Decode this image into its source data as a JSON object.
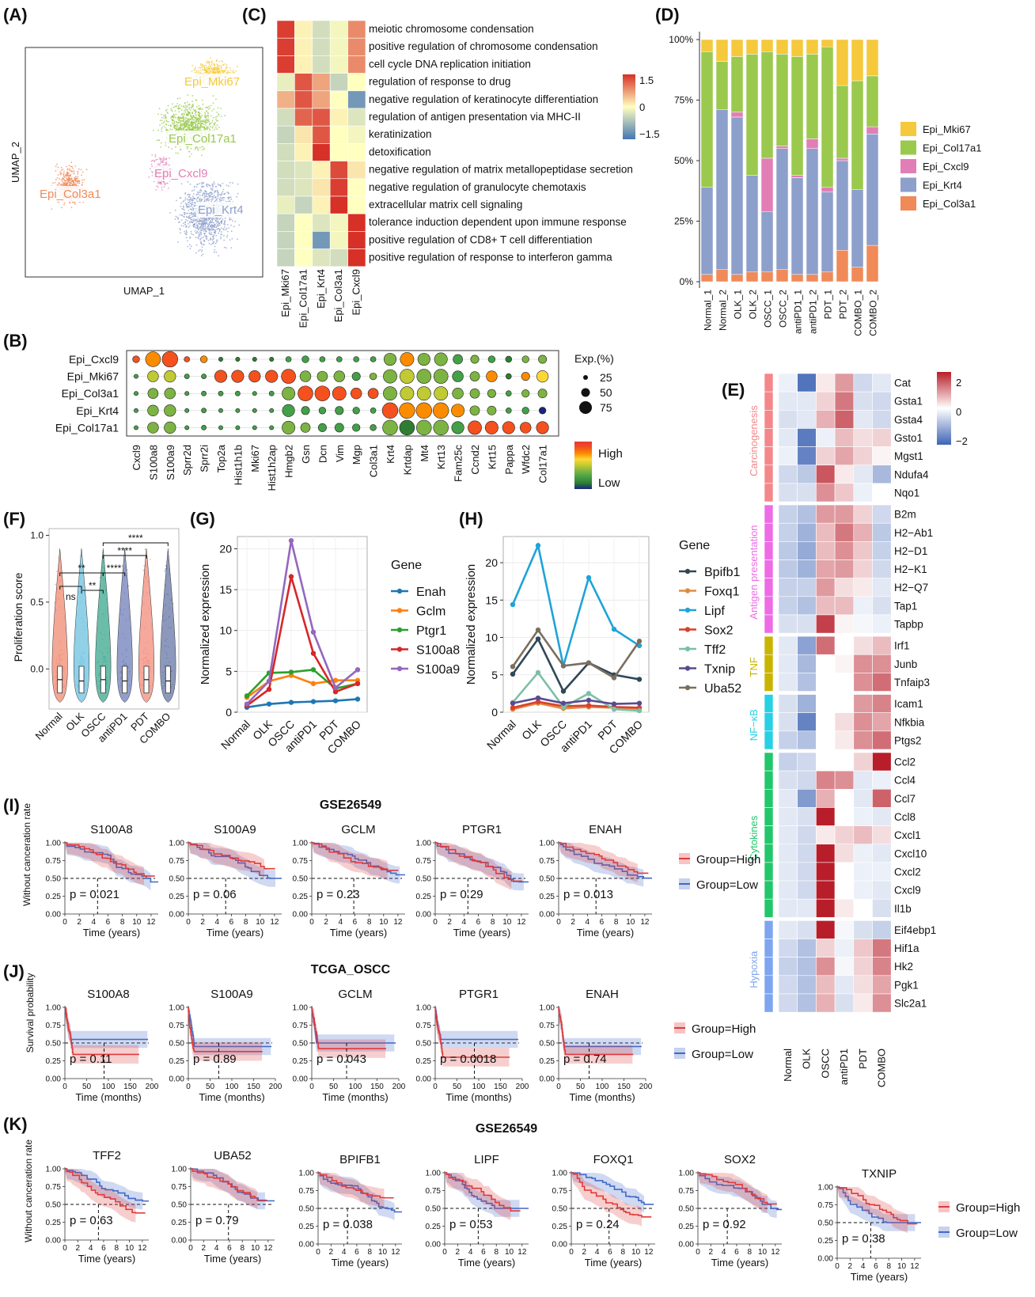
{
  "panel_labels": [
    "(A)",
    "(B)",
    "(C)",
    "(D)",
    "(E)",
    "(F)",
    "(G)",
    "(H)",
    "(I)",
    "(J)",
    "(K)"
  ],
  "colors": {
    "Epi_Mki67": "#F5C93B",
    "Epi_Col17a1": "#9AC94E",
    "Epi_Cxcl9": "#E27EB6",
    "Epi_Krt4": "#8D9FCB",
    "Epi_Col3a1": "#F08A58",
    "heat_low": "#4575B4",
    "heat_mid": "#FFFFBF",
    "heat_high": "#D73027",
    "high_group": "#E03B3B",
    "low_group": "#4169C8"
  },
  "chart_data": [
    {
      "id": "A",
      "type": "scatter",
      "xlabel": "UMAP_1",
      "ylabel": "UMAP_2",
      "clusters": [
        "Epi_Mki67",
        "Epi_Col17a1",
        "Epi_Cxcl9",
        "Epi_Col3a1",
        "Epi_Krt4"
      ]
    },
    {
      "id": "B",
      "type": "scatter",
      "rows": [
        "Epi_Cxcl9",
        "Epi_Mki67",
        "Epi_Col3a1",
        "Epi_Krt4",
        "Epi_Col17a1"
      ],
      "genes": [
        "Cxcl9",
        "S100a8",
        "S100a9",
        "Sprr2d",
        "Sprr2i",
        "Top2a",
        "Hist1h1b",
        "Mki67",
        "Hist1h2ap",
        "Hmgb2",
        "Gsn",
        "Dcn",
        "Vim",
        "Mgp",
        "Col3a1",
        "Krt4",
        "Krtdap",
        "Mt4",
        "Krt13",
        "Fam25c",
        "Ccnd2",
        "Krt15",
        "Pappa",
        "Wfdc2",
        "Col17a1"
      ],
      "size_legend_title": "Exp.(%)",
      "size_legend": [
        "25",
        "50",
        "75"
      ],
      "color_legend": [
        "High",
        "Low"
      ]
    },
    {
      "id": "C",
      "type": "heatmap",
      "columns": [
        "Epi_Mki67",
        "Epi_Col17a1",
        "Epi_Krt4",
        "Epi_Col3a1",
        "Epi_Cxcl9"
      ],
      "terms": [
        "meiotic chromosome condensation",
        "positive regulation of chromosome condensation",
        "cell cycle DNA replication initiation",
        "regulation of response to drug",
        "negative regulation of keratinocyte differentiation",
        "regulation of antigen presentation via MHC-II",
        "keratinization",
        "detoxification",
        "negative regulation of matrix metallopeptidase secretion",
        "negative regulation of granulocyte chemotaxis",
        "extracellular matrix cell signaling",
        "tolerance induction dependent upon immune response",
        "positive regulation of CD8+ T cell differentiation",
        "positive regulation of response to interferon gamma"
      ],
      "values": [
        [
          1.5,
          0.1,
          -0.4,
          -0.1,
          0.9
        ],
        [
          1.5,
          0.1,
          -0.4,
          -0.1,
          0.9
        ],
        [
          1.5,
          0.1,
          -0.4,
          -0.1,
          0.9
        ],
        [
          -0.2,
          1.3,
          0.7,
          -0.5,
          0.0
        ],
        [
          0.6,
          1.3,
          0.7,
          0.0,
          -1.2
        ],
        [
          -0.4,
          1.2,
          1.3,
          0.1,
          -0.3
        ],
        [
          -0.5,
          0.2,
          1.3,
          0.0,
          -0.1
        ],
        [
          -0.4,
          0.1,
          1.6,
          0.0,
          0.0
        ],
        [
          -0.4,
          -0.3,
          0.1,
          1.4,
          0.2
        ],
        [
          -0.4,
          -0.3,
          0.2,
          1.5,
          0.0
        ],
        [
          -0.2,
          -0.5,
          0.1,
          1.6,
          0.0
        ],
        [
          -0.5,
          0.0,
          -0.3,
          -0.1,
          1.6
        ],
        [
          -0.5,
          0.0,
          -1.2,
          -0.1,
          1.6
        ],
        [
          -0.5,
          0.0,
          -0.3,
          -0.4,
          1.6
        ]
      ],
      "legend_ticks": [
        "1.5",
        "0",
        "−1.5"
      ]
    },
    {
      "id": "D",
      "type": "bar",
      "categories": [
        "Normal_1",
        "Normal_2",
        "OLK_1",
        "OLK_2",
        "OSCC_1",
        "OSCC_2",
        "antiPD1_1",
        "antiPD1_2",
        "PDT_1",
        "PDT_2",
        "COMBO_1",
        "COMBO_2"
      ],
      "series": [
        {
          "name": "Epi_Col3a1",
          "values": [
            3,
            5,
            3,
            4,
            4,
            5,
            3,
            3,
            4,
            13,
            6,
            15
          ]
        },
        {
          "name": "Epi_Krt4",
          "values": [
            36,
            66,
            65,
            40,
            25,
            50,
            40,
            52,
            33,
            37,
            32,
            46
          ]
        },
        {
          "name": "Epi_Cxcl9",
          "values": [
            0,
            0,
            2,
            0,
            22,
            1,
            1,
            4,
            2,
            1,
            0,
            3
          ]
        },
        {
          "name": "Epi_Col17a1",
          "values": [
            56,
            20,
            23,
            50,
            44,
            38,
            49,
            35,
            58,
            30,
            45,
            21
          ]
        },
        {
          "name": "Epi_Mki67",
          "values": [
            5,
            9,
            7,
            6,
            5,
            6,
            7,
            6,
            3,
            19,
            17,
            15
          ]
        }
      ],
      "legend_order": [
        "Epi_Mki67",
        "Epi_Col17a1",
        "Epi_Cxcl9",
        "Epi_Krt4",
        "Epi_Col3a1"
      ],
      "yticks": [
        "0%",
        "25%",
        "50%",
        "75%",
        "100%"
      ]
    },
    {
      "id": "E",
      "type": "heatmap",
      "columns": [
        "Normal",
        "OLK",
        "OSCC",
        "antiPD1",
        "PDT",
        "COMBO"
      ],
      "groups": [
        {
          "name": "Carcinogenesis",
          "color": "#F4878A",
          "genes": [
            "Cat",
            "Gsta1",
            "Gsta4",
            "Gsto1",
            "Mgst1",
            "Ndufa4",
            "Nqo1"
          ]
        },
        {
          "name": "Antigen presentation",
          "color": "#EE6BE6",
          "genes": [
            "B2m",
            "H2−Ab1",
            "H2−D1",
            "H2−K1",
            "H2−Q7",
            "Tap1",
            "Tapbp"
          ]
        },
        {
          "name": "TNF",
          "color": "#C9B400",
          "genes": [
            "Irf1",
            "Junb",
            "Tnfaip3"
          ]
        },
        {
          "name": "NF−κB",
          "color": "#27D1E3",
          "genes": [
            "Icam1",
            "Nfkbia",
            "Ptgs2"
          ]
        },
        {
          "name": "Cytokines",
          "color": "#21C76A",
          "genes": [
            "Ccl2",
            "Ccl4",
            "Ccl7",
            "Ccl8",
            "Cxcl1",
            "Cxcl10",
            "Cxcl2",
            "Cxcl9",
            "Il1b"
          ]
        },
        {
          "name": "Hypoxia",
          "color": "#7EA5F0",
          "genes": [
            "Eif4ebp1",
            "Hif1a",
            "Hk2",
            "Pgk1",
            "Slc2a1"
          ]
        }
      ],
      "values": [
        [
          -0.2,
          -1.8,
          0.2,
          0.9,
          -0.5,
          -0.3
        ],
        [
          -0.3,
          -0.3,
          0.4,
          1.2,
          -0.4,
          -0.5
        ],
        [
          -0.4,
          -0.3,
          0.7,
          1.4,
          -0.3,
          -0.5
        ],
        [
          -0.3,
          -1.7,
          -0.2,
          0.6,
          0.3,
          0.4
        ],
        [
          -0.2,
          -1.6,
          0.4,
          0.8,
          0.4,
          0.1
        ],
        [
          -0.5,
          -0.7,
          1.5,
          0.2,
          -0.3,
          -0.9
        ],
        [
          -0.4,
          -0.4,
          1.0,
          0.5,
          -0.2,
          0.0
        ],
        [
          -0.6,
          -0.8,
          0.9,
          0.9,
          0.4,
          -0.5
        ],
        [
          -0.6,
          -1.0,
          0.6,
          1.2,
          0.7,
          -0.7
        ],
        [
          -0.7,
          -1.1,
          0.6,
          1.0,
          0.5,
          -0.6
        ],
        [
          -0.7,
          -1.0,
          0.8,
          0.9,
          0.4,
          -0.5
        ],
        [
          -0.6,
          -0.6,
          0.9,
          0.3,
          0.2,
          -0.3
        ],
        [
          -0.6,
          -0.8,
          0.6,
          0.6,
          -0.2,
          -0.4
        ],
        [
          -0.4,
          -0.4,
          1.7,
          0.1,
          -0.1,
          -0.2
        ],
        [
          -0.3,
          -1.2,
          1.3,
          0.0,
          0.3,
          0.6
        ],
        [
          -0.3,
          -0.9,
          0.0,
          0.1,
          1.0,
          1.0
        ],
        [
          -0.3,
          -0.8,
          0.0,
          0.0,
          1.0,
          1.3
        ],
        [
          -0.4,
          -1.0,
          0.0,
          0.0,
          0.9,
          1.1
        ],
        [
          -0.4,
          -1.6,
          0.0,
          0.3,
          1.0,
          0.8
        ],
        [
          -0.6,
          -0.8,
          0.0,
          0.2,
          1.0,
          1.3
        ],
        [
          -0.6,
          -0.5,
          0.0,
          0.0,
          0.4,
          2.0
        ],
        [
          -0.4,
          -0.5,
          1.1,
          1.0,
          -0.3,
          -0.2
        ],
        [
          -0.3,
          -1.3,
          0.7,
          0.0,
          -0.3,
          1.4
        ],
        [
          -0.3,
          -0.4,
          2.0,
          0.0,
          -0.2,
          -0.3
        ],
        [
          -0.3,
          -0.5,
          0.2,
          0.4,
          0.6,
          0.3
        ],
        [
          -0.3,
          -0.5,
          2.0,
          0.3,
          -0.2,
          -0.3
        ],
        [
          -0.3,
          -0.5,
          2.0,
          0.0,
          -0.2,
          -0.2
        ],
        [
          -0.3,
          -0.5,
          2.0,
          0.0,
          -0.2,
          -0.3
        ],
        [
          -0.3,
          -0.3,
          2.0,
          0.2,
          0.0,
          -0.4
        ],
        [
          -0.3,
          -0.4,
          2.0,
          -0.1,
          -0.4,
          -0.6
        ],
        [
          -0.5,
          -0.8,
          0.4,
          -0.2,
          0.5,
          1.2
        ],
        [
          -0.6,
          -0.8,
          1.0,
          -0.1,
          0.4,
          1.1
        ],
        [
          -0.5,
          -0.8,
          0.6,
          -0.3,
          0.3,
          0.8
        ],
        [
          -0.5,
          -0.8,
          0.7,
          -0.4,
          0.2,
          1.0
        ]
      ],
      "legend_ticks": [
        "2",
        "0",
        "−2"
      ]
    },
    {
      "id": "F",
      "type": "scatter",
      "categories": [
        "Normal",
        "OLK",
        "OSCC",
        "antiPD1",
        "PDT",
        "COMBO"
      ],
      "ylabel": "Proliferation score",
      "yticks": [
        "0.0",
        "0.5",
        "1.0"
      ],
      "ylim": [
        -0.3,
        1.05
      ],
      "medians": [
        -0.08,
        -0.09,
        -0.08,
        -0.09,
        -0.08,
        -0.09
      ],
      "violin_colors": [
        "#F08A70",
        "#6BC2E0",
        "#39A78E",
        "#6F7FB8",
        "#F28B7A",
        "#6575A5"
      ],
      "significance": [
        {
          "from": "Normal",
          "to": "OLK",
          "label": "ns"
        },
        {
          "from": "Normal",
          "to": "OSCC",
          "label": "**"
        },
        {
          "from": "OLK",
          "to": "OSCC",
          "label": "**"
        },
        {
          "from": "OSCC",
          "to": "antiPD1",
          "label": "****"
        },
        {
          "from": "OSCC",
          "to": "PDT",
          "label": "****"
        },
        {
          "from": "OSCC",
          "to": "COMBO",
          "label": "****"
        }
      ]
    },
    {
      "id": "G",
      "type": "line",
      "x": [
        "Normal",
        "OLK",
        "OSCC",
        "antiPD1",
        "PDT",
        "COMBO"
      ],
      "ylabel": "Normalized expression",
      "ylim": [
        0,
        21.5
      ],
      "yticks": [
        0,
        5,
        10,
        15,
        20
      ],
      "legend_title": "Gene",
      "series": [
        {
          "name": "Enah",
          "color": "#1F77B4",
          "values": [
            0.6,
            1.0,
            1.2,
            1.3,
            1.4,
            1.6
          ]
        },
        {
          "name": "Gclm",
          "color": "#FF7F0E",
          "values": [
            1.8,
            3.8,
            4.5,
            3.5,
            3.9,
            3.9
          ]
        },
        {
          "name": "Ptgr1",
          "color": "#2CA02C",
          "values": [
            2.0,
            4.8,
            4.9,
            5.2,
            2.9,
            3.5
          ]
        },
        {
          "name": "S100a8",
          "color": "#D62728",
          "values": [
            0.8,
            2.8,
            16.6,
            7.2,
            2.5,
            3.5
          ]
        },
        {
          "name": "S100a9",
          "color": "#9467BD",
          "values": [
            1.0,
            3.8,
            21.0,
            9.8,
            3.0,
            5.2
          ]
        }
      ]
    },
    {
      "id": "H",
      "type": "line",
      "x": [
        "Normal",
        "OLK",
        "OSCC",
        "antiPD1",
        "PDT",
        "COMBO"
      ],
      "ylabel": "Normalized expression",
      "ylim": [
        0,
        23.5
      ],
      "yticks": [
        0,
        5,
        10,
        15,
        20
      ],
      "legend_title": "Gene",
      "series": [
        {
          "name": "Bpifb1",
          "color": "#2F4858",
          "values": [
            5.1,
            9.8,
            2.8,
            6.6,
            5.0,
            4.4
          ]
        },
        {
          "name": "Foxq1",
          "color": "#E08A40",
          "values": [
            0.4,
            1.2,
            0.5,
            0.7,
            0.6,
            0.5
          ]
        },
        {
          "name": "Lipf",
          "color": "#1FA3D8",
          "values": [
            14.4,
            22.3,
            6.2,
            18.0,
            11.1,
            8.9
          ]
        },
        {
          "name": "Sox2",
          "color": "#D8412C",
          "values": [
            0.6,
            1.4,
            0.8,
            0.9,
            0.7,
            0.6
          ]
        },
        {
          "name": "Tff2",
          "color": "#7DBFA6",
          "values": [
            1.3,
            5.3,
            0.7,
            2.5,
            0.4,
            0.2
          ]
        },
        {
          "name": "Txnip",
          "color": "#5A4A8F",
          "values": [
            1.2,
            1.9,
            1.2,
            1.6,
            1.1,
            1.2
          ]
        },
        {
          "name": "Uba52",
          "color": "#7B6E5D",
          "values": [
            6.1,
            11.0,
            6.2,
            6.6,
            4.6,
            9.5
          ]
        }
      ]
    },
    {
      "id": "I",
      "type": "line",
      "title": "GSE26549",
      "ylabel": "Without canceration rate",
      "xlabel": "Time (years)",
      "xticks": [
        "0",
        "2",
        "4",
        "6",
        "8",
        "10",
        "12"
      ],
      "yticks": [
        "0.00",
        "0.25",
        "0.50",
        "0.75",
        "1.00"
      ],
      "legend": [
        "Group=High",
        "Group=Low"
      ],
      "plots": [
        {
          "gene": "S100A8",
          "p": "p = 0.021"
        },
        {
          "gene": "S100A9",
          "p": "p = 0.06"
        },
        {
          "gene": "GCLM",
          "p": "p = 0.23"
        },
        {
          "gene": "PTGR1",
          "p": "p = 0.29"
        },
        {
          "gene": "ENAH",
          "p": "p = 0.013"
        }
      ]
    },
    {
      "id": "J",
      "type": "line",
      "title": "TCGA_OSCC",
      "ylabel": "Survival probability",
      "xlabel": "Time (months)",
      "xticks": [
        "0",
        "50",
        "100",
        "150",
        "200"
      ],
      "yticks": [
        "0.00",
        "0.25",
        "0.50",
        "0.75",
        "1.00"
      ],
      "legend": [
        "Group=High",
        "Group=Low"
      ],
      "plots": [
        {
          "gene": "S100A8",
          "p": "p = 0.11"
        },
        {
          "gene": "S100A9",
          "p": "p = 0.89"
        },
        {
          "gene": "GCLM",
          "p": "p = 0.043"
        },
        {
          "gene": "PTGR1",
          "p": "p = 0.0018"
        },
        {
          "gene": "ENAH",
          "p": "p = 0.74"
        }
      ]
    },
    {
      "id": "K",
      "type": "line",
      "title": "GSE26549",
      "ylabel": "Without canceration rate",
      "xlabel": "Time (years)",
      "xticks": [
        "0",
        "2",
        "4",
        "6",
        "8",
        "10",
        "12"
      ],
      "yticks": [
        "0.00",
        "0.25",
        "0.50",
        "0.75",
        "1.00"
      ],
      "legend": [
        "Group=High",
        "Group=Low"
      ],
      "plots": [
        {
          "gene": "TFF2",
          "p": "p = 0.63"
        },
        {
          "gene": "UBA52",
          "p": "p = 0.79"
        },
        {
          "gene": "BPIFB1",
          "p": "p = 0.038"
        },
        {
          "gene": "LIPF",
          "p": "p = 0.53"
        },
        {
          "gene": "FOXQ1",
          "p": "p = 0.24"
        },
        {
          "gene": "SOX2",
          "p": "p = 0.92"
        },
        {
          "gene": "TXNIP",
          "p": "p = 0.38"
        }
      ]
    }
  ]
}
